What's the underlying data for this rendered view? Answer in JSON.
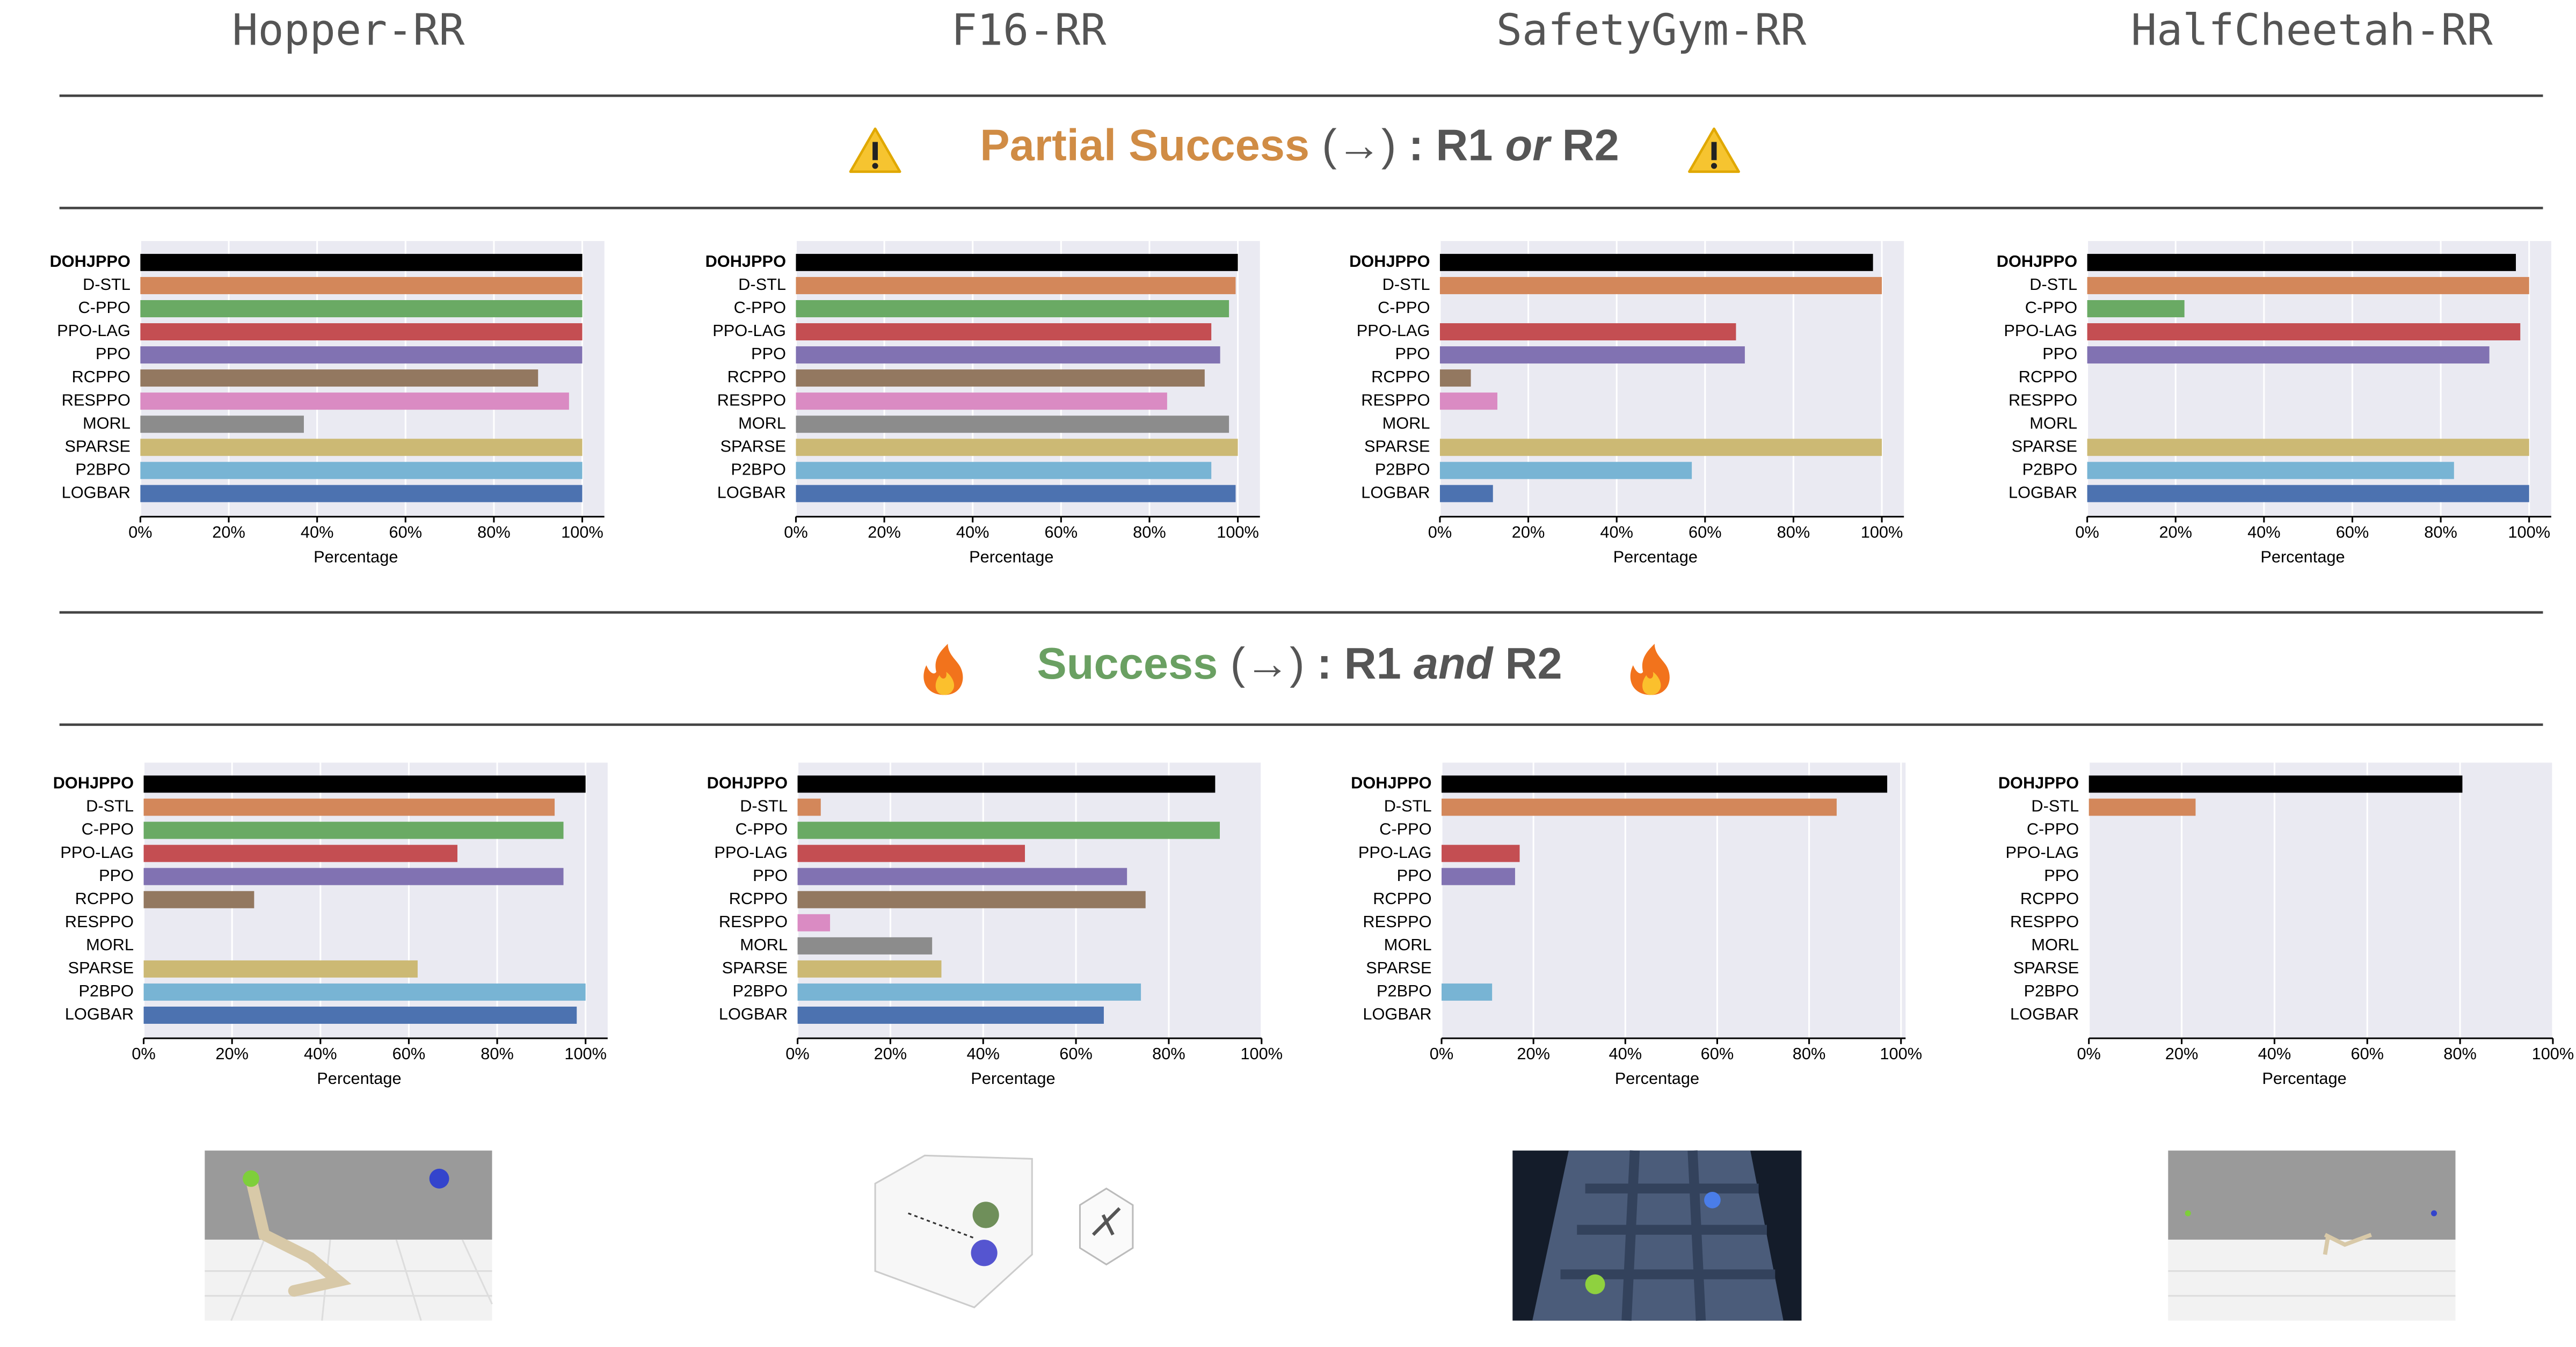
{
  "columns": [
    "Hopper-RR",
    "F16-RR",
    "SafetyGym-RR",
    "HalfCheetah-RR"
  ],
  "sections": [
    {
      "label": "Partial Success",
      "label_color": "#d08c45",
      "arrow": "(→)",
      "colon": ":",
      "r1": "R1",
      "connective": "or",
      "r2": "R2"
    },
    {
      "label": "Success",
      "label_color": "#6aa062",
      "arrow": "(→)",
      "colon": ":",
      "r1": "R1",
      "connective": "and",
      "r2": "R2"
    }
  ],
  "chart_data": [
    {
      "type": "bar",
      "orientation": "horizontal",
      "xlabel": "Percentage",
      "categories": [
        "DOHJPPO",
        "D-STL",
        "C-PPO",
        "PPO-LAG",
        "PPO",
        "RCPPO",
        "RESPPO",
        "MORL",
        "SPARSE",
        "P2BPO",
        "LOGBAR"
      ],
      "values": [
        100,
        100,
        100,
        100,
        100,
        90,
        97,
        37,
        100,
        100,
        100
      ],
      "colors": [
        "#000000",
        "#d3875a",
        "#6aaa64",
        "#c44e52",
        "#8172b2",
        "#937860",
        "#da8bc3",
        "#8c8c8c",
        "#ccb974",
        "#78b4d4",
        "#4c72b0"
      ],
      "xlim": [
        0,
        105
      ],
      "xticks": [
        {
          "value": 0,
          "label": "0%"
        },
        {
          "value": 20,
          "label": "20%"
        },
        {
          "value": 40,
          "label": "40%"
        },
        {
          "value": 60,
          "label": "60%"
        },
        {
          "value": 80,
          "label": "80%"
        },
        {
          "value": 100,
          "label": "100%"
        }
      ],
      "grid": true
    },
    {
      "type": "bar",
      "orientation": "horizontal",
      "xlabel": "Percentage",
      "categories": [
        "DOHJPPO",
        "D-STL",
        "C-PPO",
        "PPO-LAG",
        "PPO",
        "RCPPO",
        "RESPPO",
        "MORL",
        "SPARSE",
        "P2BPO",
        "LOGBAR"
      ],
      "values": [
        100,
        99.5,
        98,
        94,
        96,
        92.5,
        84,
        98,
        100,
        94,
        99.5
      ],
      "colors": [
        "#000000",
        "#d3875a",
        "#6aaa64",
        "#c44e52",
        "#8172b2",
        "#937860",
        "#da8bc3",
        "#8c8c8c",
        "#ccb974",
        "#78b4d4",
        "#4c72b0"
      ],
      "xlim": [
        0,
        105
      ],
      "xticks": [
        {
          "value": 0,
          "label": "0%"
        },
        {
          "value": 20,
          "label": "20%"
        },
        {
          "value": 40,
          "label": "40%"
        },
        {
          "value": 60,
          "label": "60%"
        },
        {
          "value": 80,
          "label": "80%"
        },
        {
          "value": 100,
          "label": "100%"
        }
      ],
      "grid": true
    },
    {
      "type": "bar",
      "orientation": "horizontal",
      "xlabel": "Percentage",
      "categories": [
        "DOHJPPO",
        "D-STL",
        "C-PPO",
        "PPO-LAG",
        "PPO",
        "RCPPO",
        "RESPPO",
        "MORL",
        "SPARSE",
        "P2BPO",
        "LOGBAR"
      ],
      "values": [
        98,
        100,
        0,
        67,
        69,
        7,
        13,
        0,
        100,
        57,
        12
      ],
      "colors": [
        "#000000",
        "#d3875a",
        "#6aaa64",
        "#c44e52",
        "#8172b2",
        "#937860",
        "#da8bc3",
        "#8c8c8c",
        "#ccb974",
        "#78b4d4",
        "#4c72b0"
      ],
      "xlim": [
        0,
        105
      ],
      "xticks": [
        {
          "value": 0,
          "label": "0%"
        },
        {
          "value": 20,
          "label": "20%"
        },
        {
          "value": 40,
          "label": "40%"
        },
        {
          "value": 60,
          "label": "60%"
        },
        {
          "value": 80,
          "label": "80%"
        },
        {
          "value": 100,
          "label": "100%"
        }
      ],
      "grid": true
    },
    {
      "type": "bar",
      "orientation": "horizontal",
      "xlabel": "Percentage",
      "categories": [
        "DOHJPPO",
        "D-STL",
        "C-PPO",
        "PPO-LAG",
        "PPO",
        "RCPPO",
        "RESPPO",
        "MORL",
        "SPARSE",
        "P2BPO",
        "LOGBAR"
      ],
      "values": [
        97,
        100,
        22,
        98,
        91,
        0,
        0,
        0,
        100,
        83,
        100
      ],
      "colors": [
        "#000000",
        "#d3875a",
        "#6aaa64",
        "#c44e52",
        "#8172b2",
        "#937860",
        "#da8bc3",
        "#8c8c8c",
        "#ccb974",
        "#78b4d4",
        "#4c72b0"
      ],
      "xlim": [
        0,
        105
      ],
      "xticks": [
        {
          "value": 0,
          "label": "0%"
        },
        {
          "value": 20,
          "label": "20%"
        },
        {
          "value": 40,
          "label": "40%"
        },
        {
          "value": 60,
          "label": "60%"
        },
        {
          "value": 80,
          "label": "80%"
        },
        {
          "value": 100,
          "label": "100%"
        }
      ],
      "grid": true
    },
    {
      "type": "bar",
      "orientation": "horizontal",
      "xlabel": "Percentage",
      "categories": [
        "DOHJPPO",
        "D-STL",
        "C-PPO",
        "PPO-LAG",
        "PPO",
        "RCPPO",
        "RESPPO",
        "MORL",
        "SPARSE",
        "P2BPO",
        "LOGBAR"
      ],
      "values": [
        100,
        93,
        95,
        71,
        95,
        25,
        0,
        0,
        62,
        100,
        98
      ],
      "colors": [
        "#000000",
        "#d3875a",
        "#6aaa64",
        "#c44e52",
        "#8172b2",
        "#937860",
        "#da8bc3",
        "#8c8c8c",
        "#ccb974",
        "#78b4d4",
        "#4c72b0"
      ],
      "xlim": [
        0,
        105
      ],
      "xticks": [
        {
          "value": 0,
          "label": "0%"
        },
        {
          "value": 20,
          "label": "20%"
        },
        {
          "value": 40,
          "label": "40%"
        },
        {
          "value": 60,
          "label": "60%"
        },
        {
          "value": 80,
          "label": "80%"
        },
        {
          "value": 100,
          "label": "100%"
        }
      ],
      "grid": true
    },
    {
      "type": "bar",
      "orientation": "horizontal",
      "xlabel": "Percentage",
      "categories": [
        "DOHJPPO",
        "D-STL",
        "C-PPO",
        "PPO-LAG",
        "PPO",
        "RCPPO",
        "RESPPO",
        "MORL",
        "SPARSE",
        "P2BPO",
        "LOGBAR"
      ],
      "values": [
        90,
        5,
        91,
        49,
        71,
        75,
        7,
        29,
        31,
        74,
        66
      ],
      "colors": [
        "#000000",
        "#d3875a",
        "#6aaa64",
        "#c44e52",
        "#8172b2",
        "#937860",
        "#da8bc3",
        "#8c8c8c",
        "#ccb974",
        "#78b4d4",
        "#4c72b0"
      ],
      "xlim": [
        0,
        100
      ],
      "xticks": [
        {
          "value": 0,
          "label": "0%"
        },
        {
          "value": 20,
          "label": "20%"
        },
        {
          "value": 40,
          "label": "40%"
        },
        {
          "value": 60,
          "label": "60%"
        },
        {
          "value": 80,
          "label": "80%"
        },
        {
          "value": 100,
          "label": "100%"
        }
      ],
      "grid": true
    },
    {
      "type": "bar",
      "orientation": "horizontal",
      "xlabel": "Percentage",
      "categories": [
        "DOHJPPO",
        "D-STL",
        "C-PPO",
        "PPO-LAG",
        "PPO",
        "RCPPO",
        "RESPPO",
        "MORL",
        "SPARSE",
        "P2BPO",
        "LOGBAR"
      ],
      "values": [
        97,
        86,
        0,
        17,
        16,
        0,
        0,
        0,
        0,
        11,
        0
      ],
      "colors": [
        "#000000",
        "#d3875a",
        "#6aaa64",
        "#c44e52",
        "#8172b2",
        "#937860",
        "#da8bc3",
        "#8c8c8c",
        "#ccb974",
        "#78b4d4",
        "#4c72b0"
      ],
      "xlim": [
        0,
        101
      ],
      "xticks": [
        {
          "value": 0,
          "label": "0%"
        },
        {
          "value": 20,
          "label": "20%"
        },
        {
          "value": 40,
          "label": "40%"
        },
        {
          "value": 60,
          "label": "60%"
        },
        {
          "value": 80,
          "label": "80%"
        },
        {
          "value": 100,
          "label": "100%"
        }
      ],
      "grid": true
    },
    {
      "type": "bar",
      "orientation": "horizontal",
      "xlabel": "Percentage",
      "categories": [
        "DOHJPPO",
        "D-STL",
        "C-PPO",
        "PPO-LAG",
        "PPO",
        "RCPPO",
        "RESPPO",
        "MORL",
        "SPARSE",
        "P2BPO",
        "LOGBAR"
      ],
      "values": [
        80.5,
        23,
        0,
        0,
        0,
        0,
        0,
        0,
        0,
        0,
        0
      ],
      "colors": [
        "#000000",
        "#d3875a",
        "#6aaa64",
        "#c44e52",
        "#8172b2",
        "#937860",
        "#da8bc3",
        "#8c8c8c",
        "#ccb974",
        "#78b4d4",
        "#4c72b0"
      ],
      "xlim": [
        0,
        100
      ],
      "xticks": [
        {
          "value": 0,
          "label": "0%"
        },
        {
          "value": 20,
          "label": "20%"
        },
        {
          "value": 40,
          "label": "40%"
        },
        {
          "value": 60,
          "label": "60%"
        },
        {
          "value": 80,
          "label": "80%"
        },
        {
          "value": 100,
          "label": "100%"
        }
      ],
      "grid": true
    }
  ]
}
